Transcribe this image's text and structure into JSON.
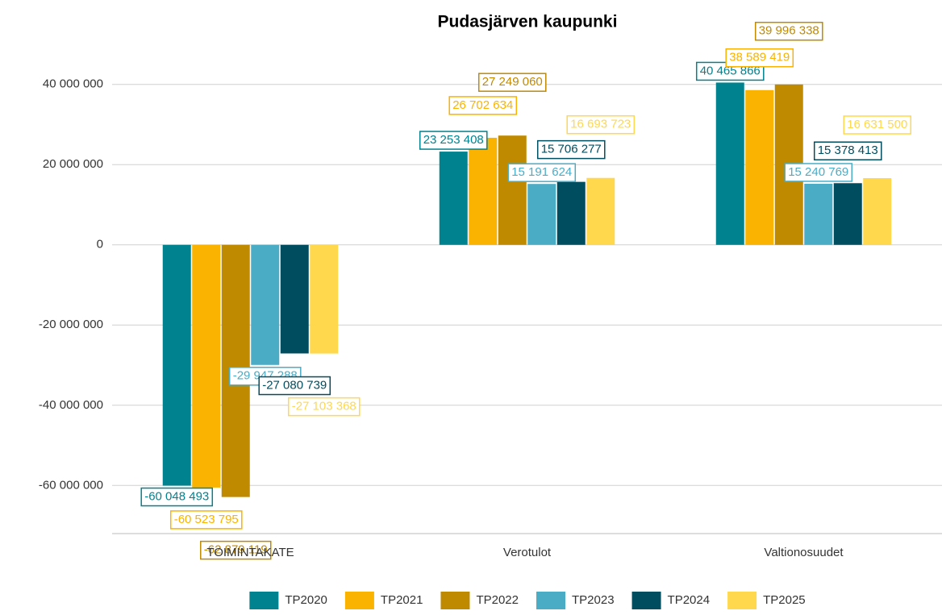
{
  "chart_data": {
    "type": "bar",
    "title": "Pudasjärven kaupunki",
    "categories": [
      "TOIMINTAKATE",
      "Verotulot",
      "Valtionosuudet"
    ],
    "series": [
      {
        "name": "TP2020",
        "color": "#00838f",
        "values": [
          -60048493,
          23253408,
          40465866
        ],
        "value_labels": [
          "-60 048 493",
          "23 253 408",
          "40 465 866"
        ]
      },
      {
        "name": "TP2021",
        "color": "#f9b300",
        "values": [
          -60523795,
          26702634,
          38589419
        ],
        "value_labels": [
          "-60 523 795",
          "26 702 634",
          "38 589 419"
        ]
      },
      {
        "name": "TP2022",
        "color": "#c08a00",
        "values": [
          -62879119,
          27249060,
          39996338
        ],
        "value_labels": [
          "-62 879 119",
          "27 249 060",
          "39 996 338"
        ]
      },
      {
        "name": "TP2023",
        "color": "#4bacc6",
        "values": [
          -29947288,
          15191624,
          15240769
        ],
        "value_labels": [
          "-29 947 288",
          "15 191 624",
          "15 240 769"
        ]
      },
      {
        "name": "TP2024",
        "color": "#004d60",
        "values": [
          -27080739,
          15706277,
          15378413
        ],
        "value_labels": [
          "-27 080 739",
          "15 706 277",
          "15 378 413"
        ]
      },
      {
        "name": "TP2025",
        "color": "#ffd84d",
        "values": [
          -27103368,
          16693723,
          16631500
        ],
        "value_labels": [
          "-27 103 368",
          "16 693 723",
          "16 631 500"
        ]
      }
    ],
    "ylim": [
      -72000000,
      50000000
    ],
    "yticks": [
      {
        "value": -60000000,
        "label": "-60 000 000"
      },
      {
        "value": -40000000,
        "label": "-40 000 000"
      },
      {
        "value": -20000000,
        "label": "-20 000 000"
      },
      0,
      {
        "value": 20000000,
        "label": "20 000 000"
      },
      {
        "value": 40000000,
        "label": "40 000 000"
      }
    ],
    "grid": true,
    "legend": "bottom"
  }
}
